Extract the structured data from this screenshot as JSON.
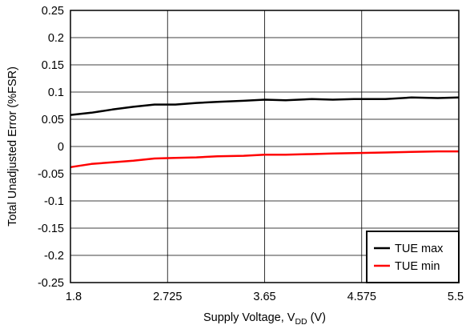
{
  "chart_data": {
    "type": "line",
    "xlabel": {
      "main": "Supply Voltage, V",
      "sub": "DD",
      "suffix": " (V)"
    },
    "ylabel": "Total Unadjusted Error (%FSR)",
    "xlim": [
      1.8,
      5.5
    ],
    "ylim": [
      -0.25,
      0.25
    ],
    "x_ticks": [
      "1.8",
      "2.725",
      "3.65",
      "4.575",
      "5.5"
    ],
    "y_ticks": [
      "0.25",
      "0.2",
      "0.15",
      "0.1",
      "0.05",
      "0",
      "-0.05",
      "-0.1",
      "-0.15",
      "-0.2",
      "-0.25"
    ],
    "grid": true,
    "legend_position": "bottom-right",
    "series": [
      {
        "name": "TUE max",
        "color": "#000000",
        "x": [
          1.8,
          2.0,
          2.2,
          2.4,
          2.6,
          2.8,
          3.0,
          3.2,
          3.45,
          3.65,
          3.85,
          4.1,
          4.3,
          4.5,
          4.8,
          5.05,
          5.3,
          5.5
        ],
        "y": [
          0.058,
          0.062,
          0.068,
          0.073,
          0.077,
          0.077,
          0.08,
          0.082,
          0.084,
          0.086,
          0.085,
          0.087,
          0.086,
          0.087,
          0.087,
          0.09,
          0.089,
          0.09
        ]
      },
      {
        "name": "TUE min",
        "color": "#ff0000",
        "x": [
          1.8,
          2.0,
          2.2,
          2.4,
          2.6,
          2.8,
          3.0,
          3.2,
          3.45,
          3.65,
          3.85,
          4.1,
          4.3,
          4.5,
          4.8,
          5.05,
          5.3,
          5.5
        ],
        "y": [
          -0.038,
          -0.032,
          -0.029,
          -0.026,
          -0.022,
          -0.021,
          -0.02,
          -0.018,
          -0.017,
          -0.015,
          -0.015,
          -0.014,
          -0.013,
          -0.012,
          -0.011,
          -0.01,
          -0.009,
          -0.009
        ]
      }
    ]
  }
}
